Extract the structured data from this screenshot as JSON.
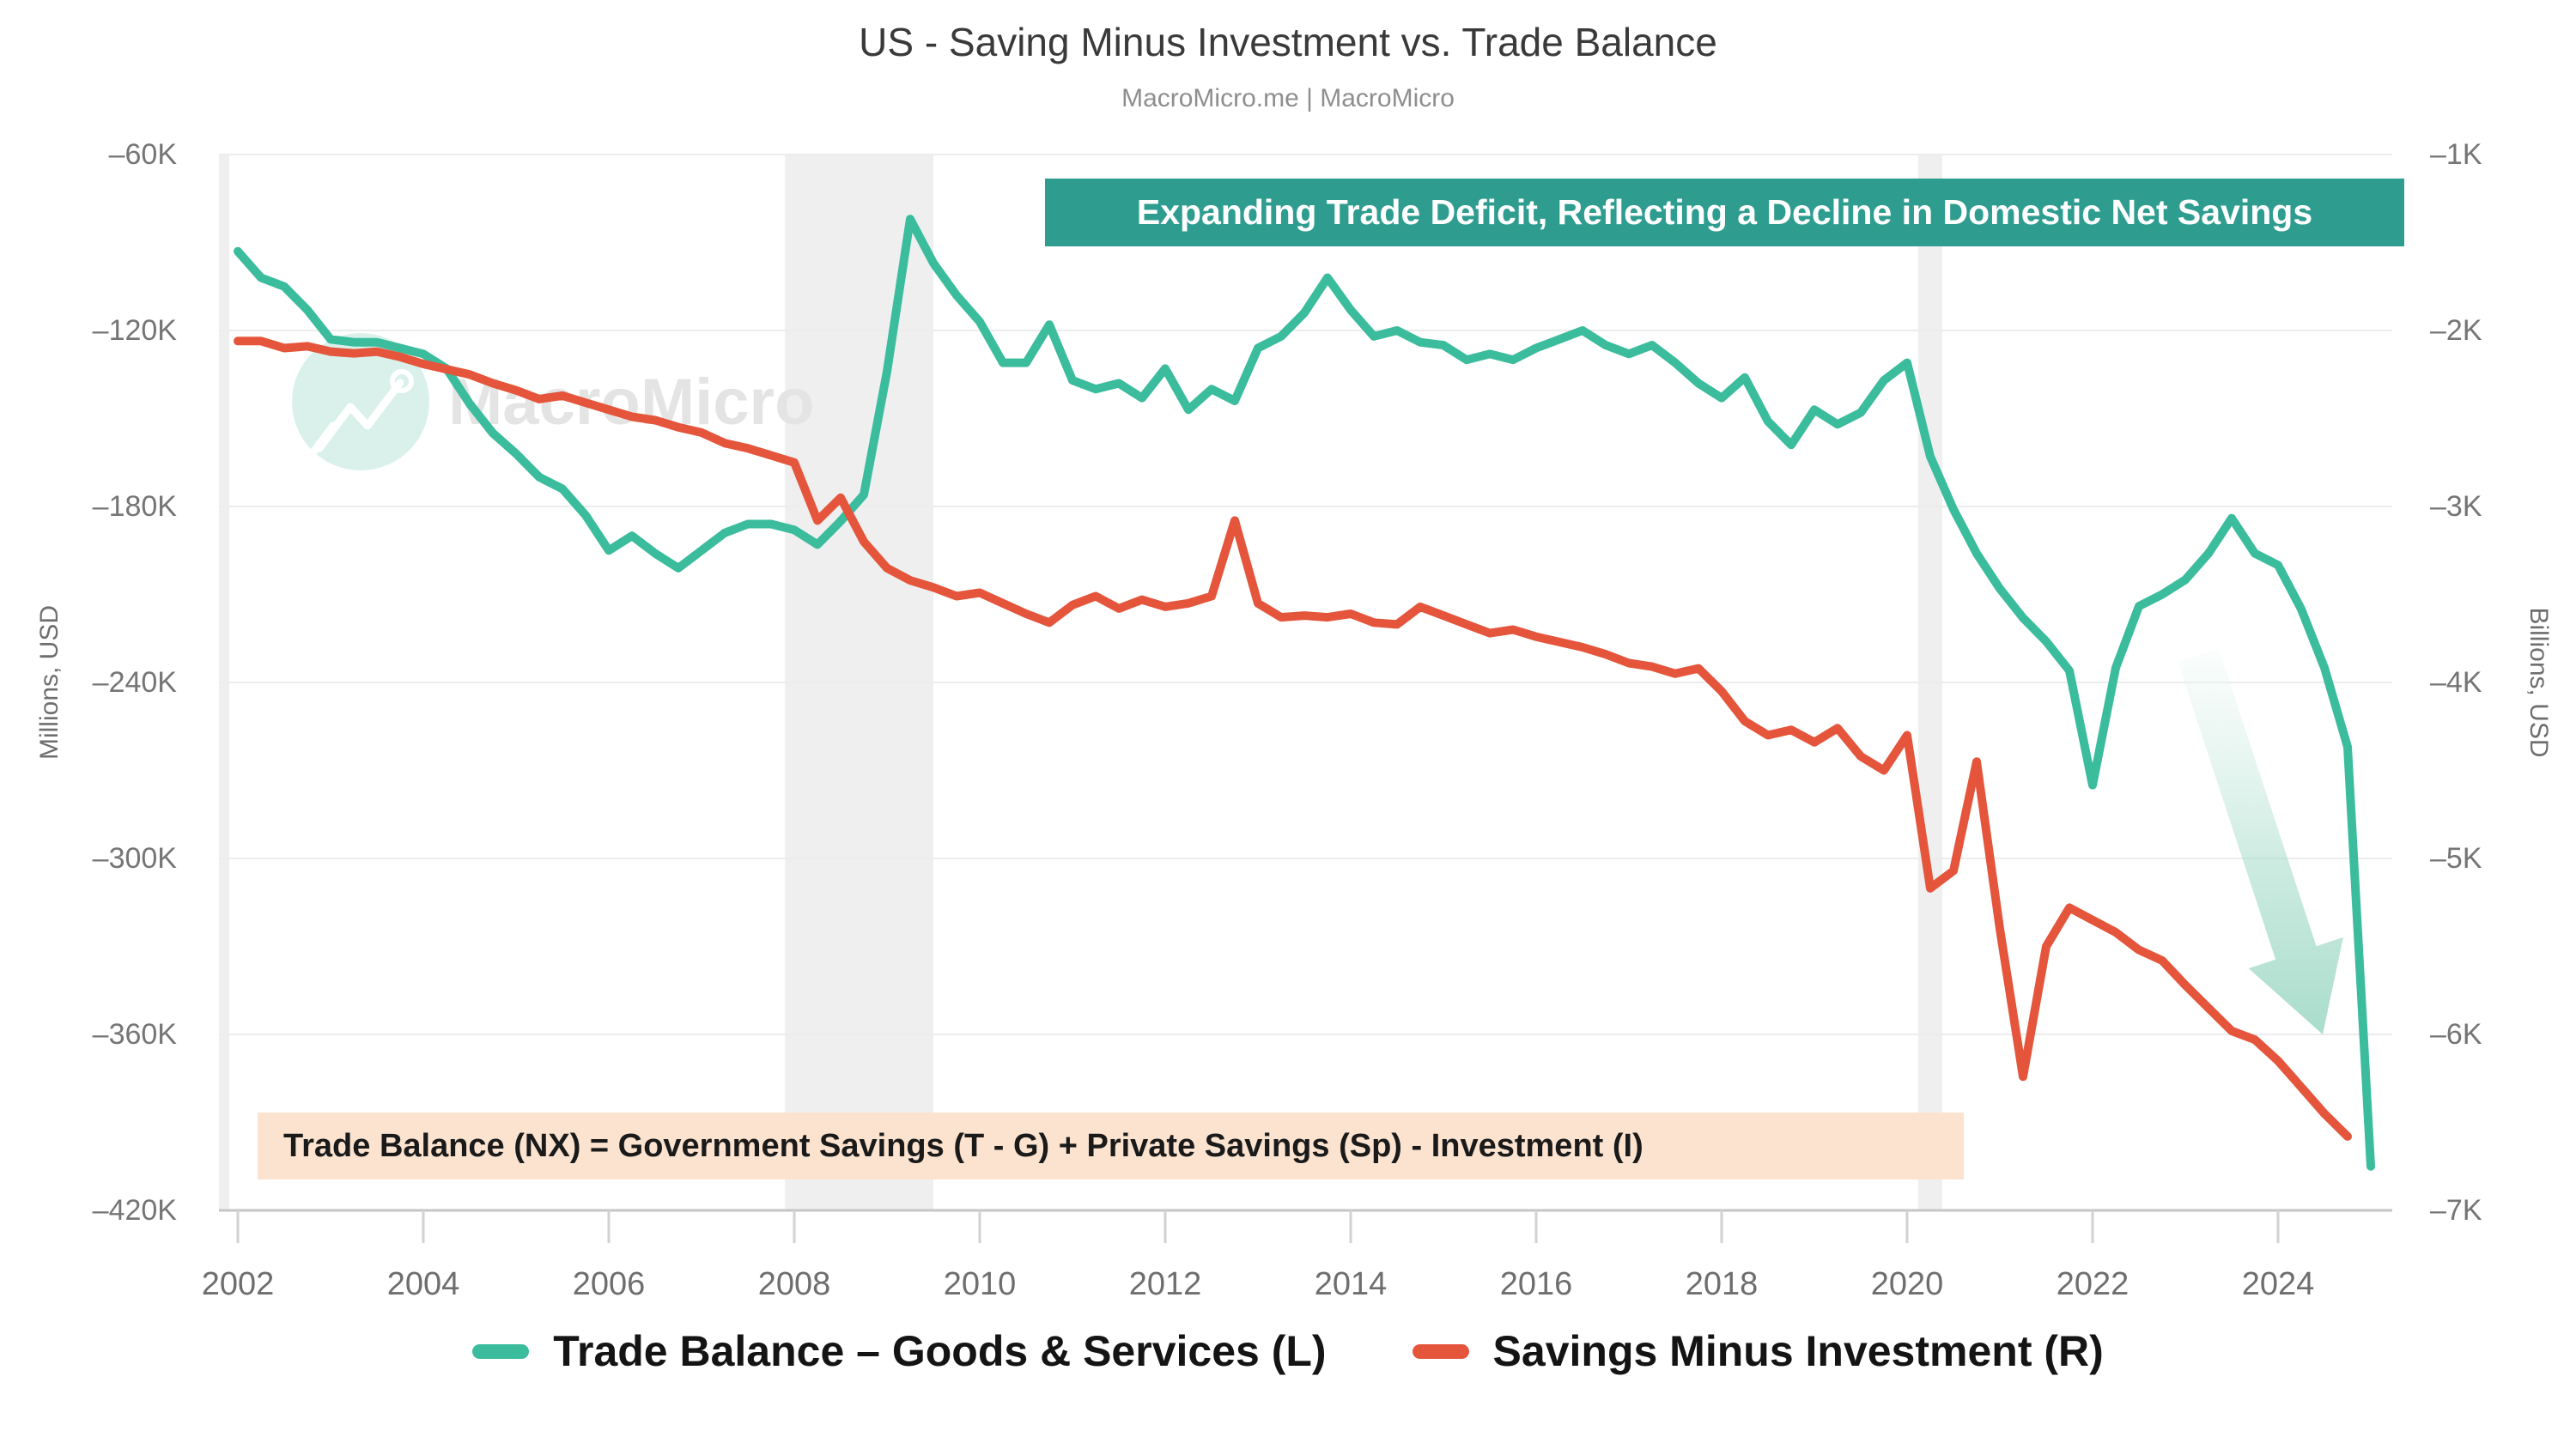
{
  "title": "US - Saving Minus Investment vs. Trade Balance",
  "subtitle": "MacroMicro.me | MacroMicro",
  "banner": {
    "text": "Expanding Trade Deficit, Reflecting a Decline in Domestic Net Savings",
    "bg_color": "#2e9d90",
    "text_color": "#ffffff"
  },
  "formula_note": {
    "text": "Trade Balance (NX) = Government Savings (T - G) + Private Savings (Sp) - Investment (I)",
    "bg_color": "#fbe3d0",
    "text_color": "#1a1a1a"
  },
  "watermark": {
    "text": "MacroMicro",
    "circle_color": "#d9f1ea",
    "text_color": "#e4e4e4"
  },
  "legend": [
    {
      "label": "Trade Balance – Goods & Services (L)",
      "color": "#3abc9d"
    },
    {
      "label": "Savings Minus Investment (R)",
      "color": "#e4553c"
    }
  ],
  "chart_data": {
    "type": "line",
    "title": "US - Saving Minus Investment vs. Trade Balance",
    "grid": true,
    "legend_position": "bottom",
    "x_axis": {
      "labels": [
        "2002",
        "2004",
        "2006",
        "2008",
        "2010",
        "2012",
        "2014",
        "2016",
        "2018",
        "2020",
        "2022",
        "2024"
      ],
      "label_years": [
        2002,
        2004,
        2006,
        2008,
        2010,
        2012,
        2014,
        2016,
        2018,
        2020,
        2022,
        2024
      ],
      "range": [
        2001.8,
        2025.3
      ]
    },
    "left_axis": {
      "label": "Millions, USD",
      "tick_labels": [
        "–60K",
        "–120K",
        "–180K",
        "–240K",
        "–300K",
        "–360K",
        "–420K"
      ],
      "tick_values": [
        -60,
        -120,
        -180,
        -240,
        -300,
        -360,
        -420
      ],
      "range": [
        -420,
        -60
      ],
      "unit": "thousands of millions USD"
    },
    "right_axis": {
      "label": "Billions, USD",
      "tick_labels": [
        "–1K",
        "–2K",
        "–3K",
        "–4K",
        "–5K",
        "–6K",
        "–7K"
      ],
      "tick_values": [
        -1,
        -2,
        -3,
        -4,
        -5,
        -6,
        -7
      ],
      "range": [
        -7,
        -1
      ],
      "unit": "thousands of billions USD"
    },
    "recession_bands": [
      [
        2007.9,
        2009.5
      ],
      [
        2020.12,
        2020.38
      ]
    ],
    "series": [
      {
        "name": "Trade Balance – Goods & Services (L)",
        "axis": "left",
        "color": "#3abc9d",
        "x_start": 2002.0,
        "x_step": 0.25,
        "values": [
          -93,
          -102,
          -105,
          -113,
          -123,
          -124,
          -124,
          -126,
          -128,
          -133,
          -145,
          -155,
          -162,
          -170,
          -174,
          -183,
          -195,
          -190,
          -196,
          -201,
          -195,
          -189,
          -186,
          -186,
          -188,
          -193,
          -185,
          -176,
          -134,
          -82,
          -97,
          -108,
          -117,
          -131,
          -131,
          -118,
          -137,
          -140,
          -138,
          -143,
          -133,
          -147,
          -140,
          -144,
          -126,
          -122,
          -114,
          -102,
          -113,
          -122,
          -120,
          -124,
          -125,
          -130,
          -128,
          -130,
          -126,
          -123,
          -120,
          -125,
          -128,
          -125,
          -131,
          -138,
          -143,
          -136,
          -151,
          -159,
          -147,
          -152,
          -148,
          -137,
          -131,
          -163,
          -181,
          -196,
          -208,
          -218,
          -226,
          -236,
          -275,
          -235,
          -214,
          -210,
          -205,
          -196,
          -184,
          -196,
          -200,
          -215,
          -235,
          -262,
          -405
        ]
      },
      {
        "name": "Savings Minus Investment (R)",
        "axis": "right",
        "color": "#e4553c",
        "x_start": 2002.0,
        "x_step": 0.25,
        "values": [
          -2.06,
          -2.06,
          -2.1,
          -2.09,
          -2.12,
          -2.13,
          -2.12,
          -2.15,
          -2.19,
          -2.22,
          -2.25,
          -2.3,
          -2.34,
          -2.39,
          -2.37,
          -2.41,
          -2.45,
          -2.49,
          -2.51,
          -2.55,
          -2.58,
          -2.64,
          -2.67,
          -2.71,
          -2.75,
          -3.08,
          -2.95,
          -3.2,
          -3.35,
          -3.42,
          -3.46,
          -3.51,
          -3.49,
          -3.55,
          -3.61,
          -3.66,
          -3.56,
          -3.51,
          -3.58,
          -3.53,
          -3.57,
          -3.55,
          -3.51,
          -3.08,
          -3.55,
          -3.63,
          -3.62,
          -3.63,
          -3.61,
          -3.66,
          -3.67,
          -3.57,
          -3.62,
          -3.67,
          -3.72,
          -3.7,
          -3.74,
          -3.77,
          -3.8,
          -3.84,
          -3.89,
          -3.91,
          -3.95,
          -3.92,
          -4.05,
          -4.22,
          -4.3,
          -4.27,
          -4.34,
          -4.26,
          -4.42,
          -4.5,
          -4.3,
          -5.17,
          -5.07,
          -4.45,
          -5.4,
          -6.24,
          -5.5,
          -5.28,
          -5.35,
          -5.42,
          -5.52,
          -5.58,
          -5.72,
          -5.85,
          -5.98,
          -6.03,
          -6.15,
          -6.3,
          -6.45,
          -6.58
        ]
      }
    ],
    "annotations": {
      "trend_arrow": {
        "shape": "down-right-arrow",
        "tail": [
          2560,
          763
        ],
        "tip": [
          2705,
          1205
        ],
        "shaft_width": 50,
        "head_width": 116,
        "head_length": 100,
        "gradient": [
          "#f2faf7",
          "#a5dbc9"
        ]
      }
    }
  }
}
